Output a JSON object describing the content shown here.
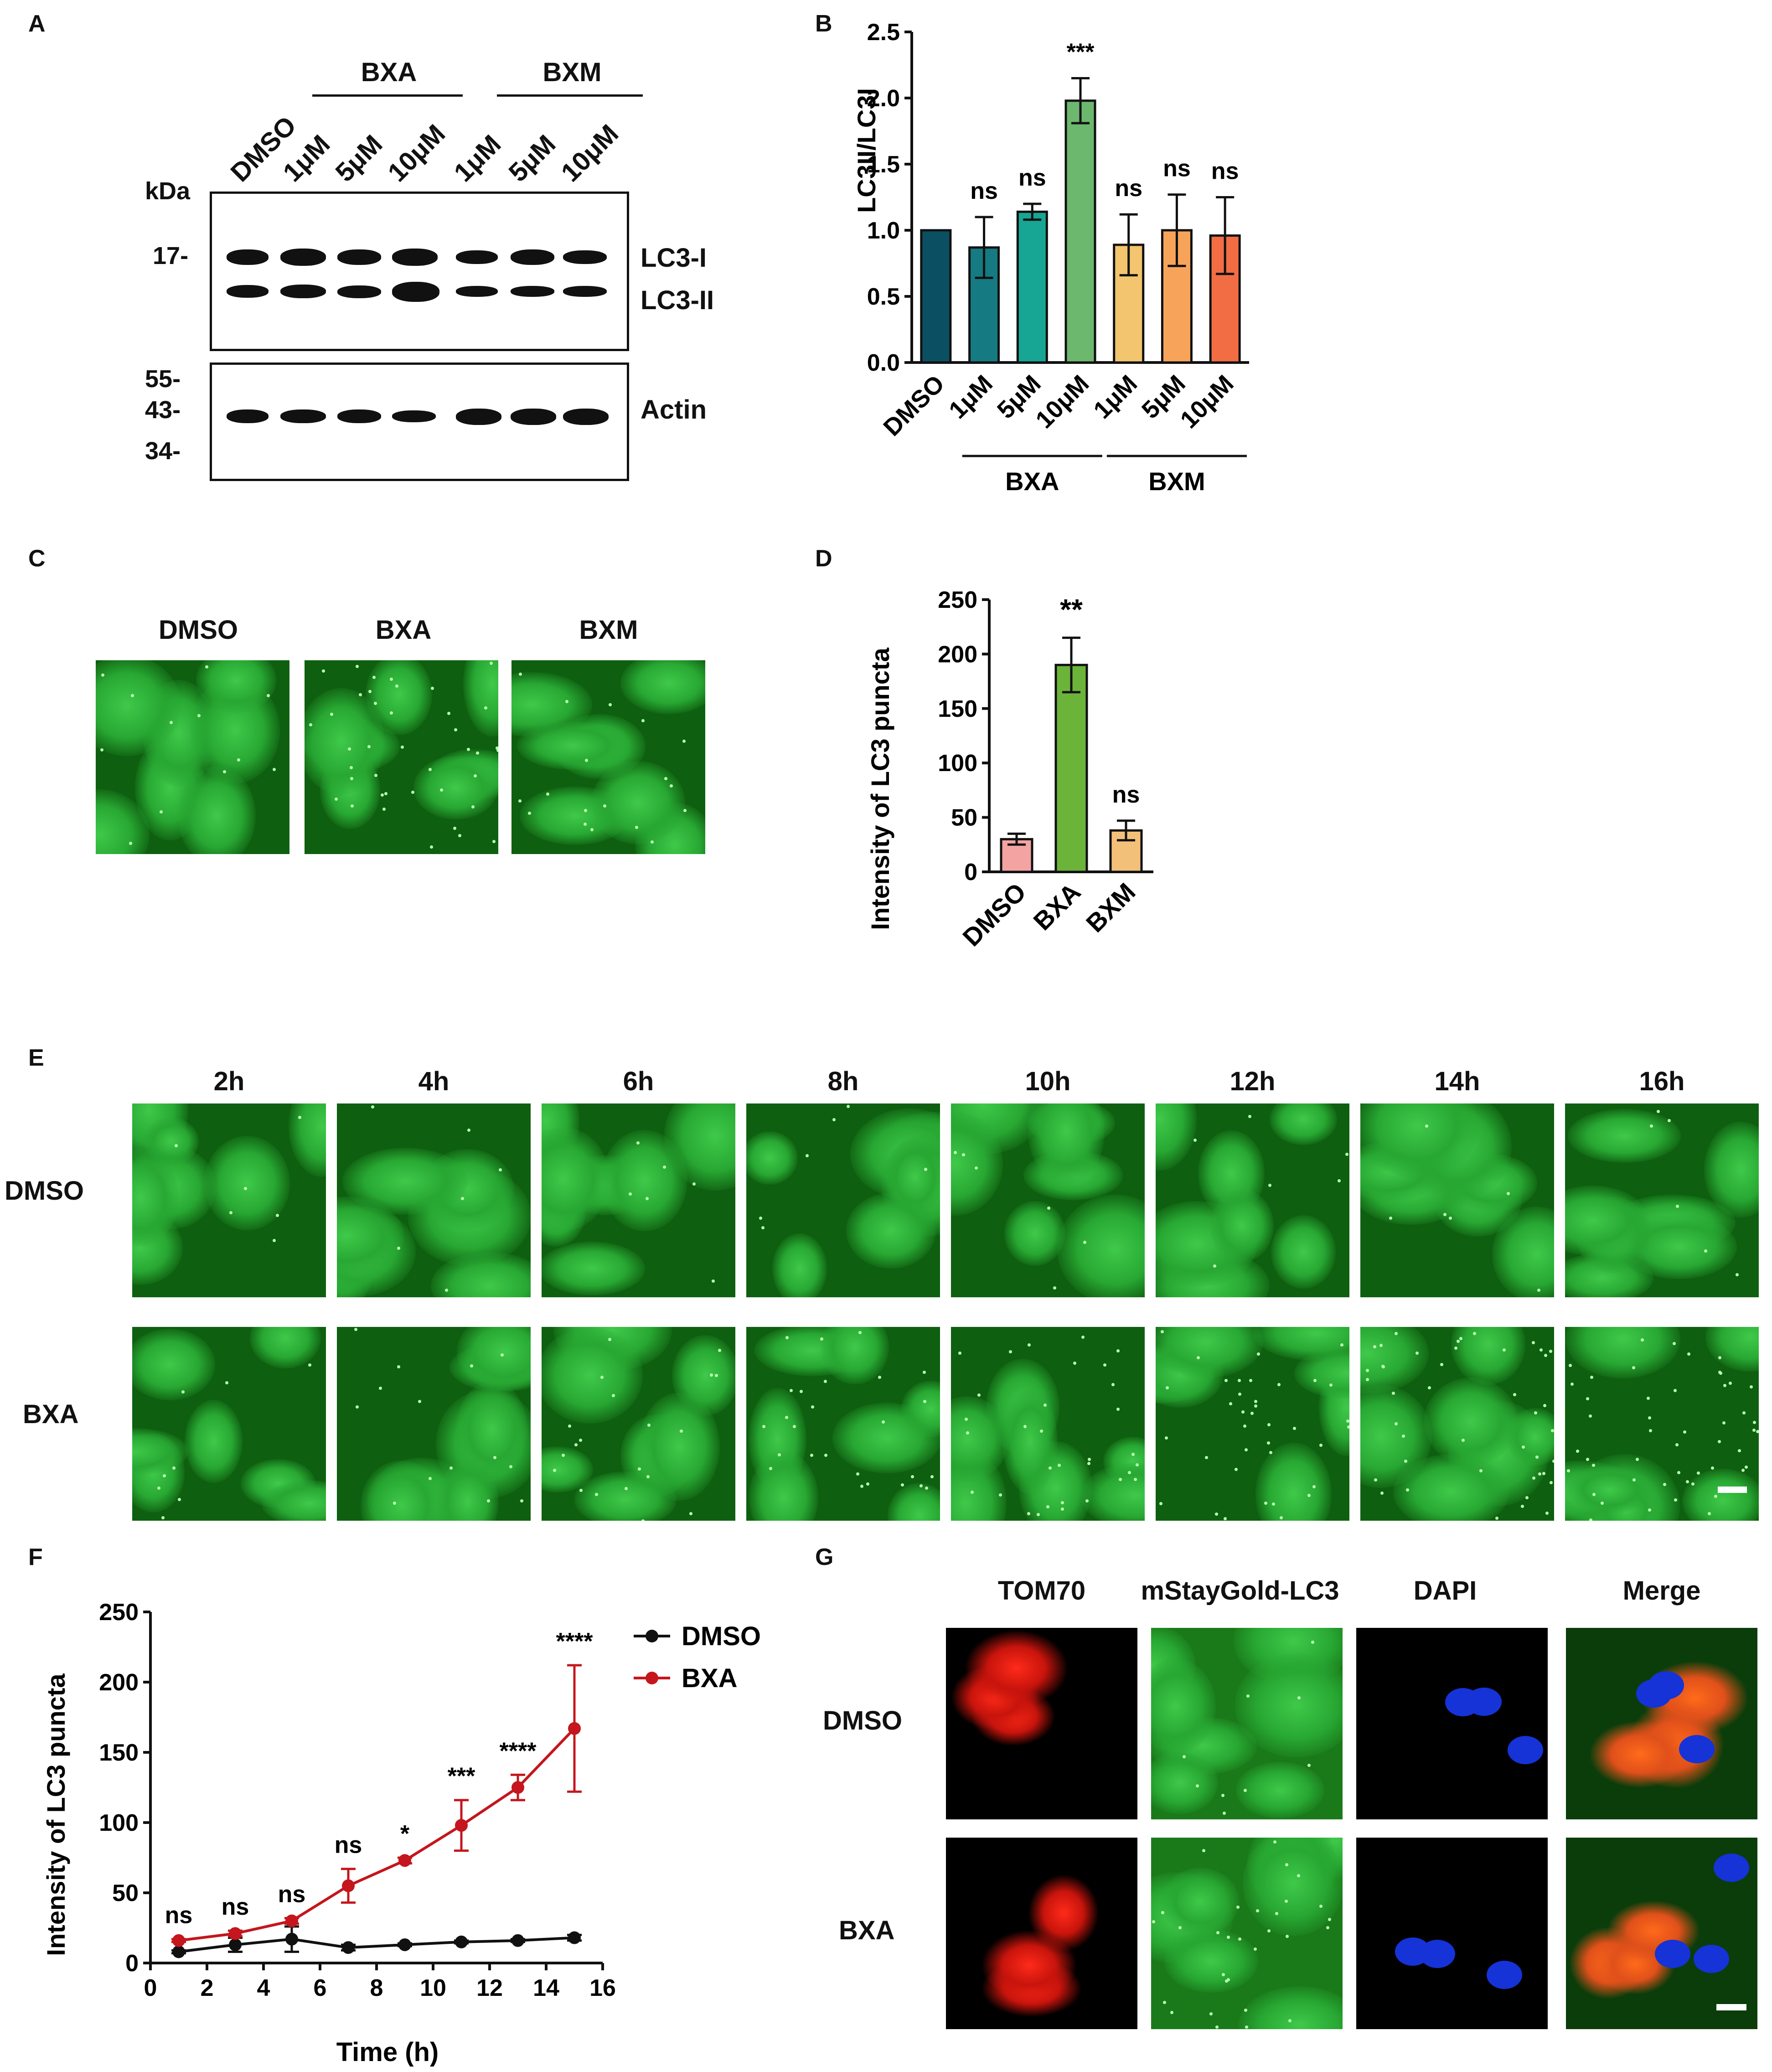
{
  "panels": {
    "A": "A",
    "B": "B",
    "C": "C",
    "D": "D",
    "E": "E",
    "F": "F",
    "G": "G"
  },
  "panelA": {
    "group_labels": [
      "BXA",
      "BXM"
    ],
    "lanes": [
      "DMSO",
      "1μM",
      "5μM",
      "10μM",
      "1μM",
      "5μM",
      "10μM"
    ],
    "kda": "kDa",
    "markers_top": [
      "17-"
    ],
    "markers_bottom": [
      "55-",
      "43-",
      "34-"
    ],
    "band_labels": [
      "LC3-I",
      "LC3-II",
      "Actin"
    ]
  },
  "panelC": {
    "labels": [
      "DMSO",
      "BXA",
      "BXM"
    ]
  },
  "panelE": {
    "timepoints": [
      "2h",
      "4h",
      "6h",
      "8h",
      "10h",
      "12h",
      "14h",
      "16h"
    ],
    "rows": [
      "DMSO",
      "BXA"
    ]
  },
  "panelG": {
    "columns": [
      "TOM70",
      "mStayGold-LC3",
      "DAPI",
      "Merge"
    ],
    "rows": [
      "DMSO",
      "BXA"
    ]
  },
  "chart_data": [
    {
      "panel": "B",
      "type": "bar",
      "categories": [
        "DMSO",
        "1μM",
        "5μM",
        "10μM",
        "1μM",
        "5μM",
        "10μM"
      ],
      "groups": [
        {
          "label": "BXA",
          "categories": [
            1,
            2,
            3
          ]
        },
        {
          "label": "BXM",
          "categories": [
            4,
            5,
            6
          ]
        }
      ],
      "values": [
        1.0,
        0.87,
        1.14,
        1.98,
        0.89,
        1.0,
        0.96
      ],
      "errors": [
        0,
        0.23,
        0.06,
        0.17,
        0.23,
        0.27,
        0.29
      ],
      "significance": [
        "",
        "ns",
        "ns",
        "***",
        "ns",
        "ns",
        "ns"
      ],
      "colors": [
        "#0b4f63",
        "#157a82",
        "#17a693",
        "#6db86f",
        "#f2c56e",
        "#f7a45a",
        "#f26d44"
      ],
      "ylabel": "LC3II/LC3I",
      "ylim": [
        0,
        2.5
      ],
      "yticks": [
        "0.0",
        "0.5",
        "1.0",
        "1.5",
        "2.0",
        "2.5"
      ]
    },
    {
      "panel": "D",
      "type": "bar",
      "categories": [
        "DMSO",
        "BXA",
        "BXM"
      ],
      "values": [
        30,
        190,
        38
      ],
      "errors": [
        5,
        25,
        9
      ],
      "significance": [
        "",
        "**",
        "ns"
      ],
      "colors": [
        "#f4a3a3",
        "#6cb33a",
        "#f3c07a"
      ],
      "ylabel": "Intensity of LC3 puncta",
      "ylim": [
        0,
        250
      ],
      "yticks": [
        "0",
        "50",
        "100",
        "150",
        "200",
        "250"
      ]
    },
    {
      "panel": "F",
      "type": "line",
      "x": [
        1,
        3,
        5,
        7,
        9,
        11,
        13,
        15
      ],
      "series": [
        {
          "name": "DMSO",
          "values": [
            8,
            13,
            17,
            11,
            13,
            15,
            16,
            18
          ],
          "errors": [
            1,
            5,
            9,
            2,
            1,
            1,
            1,
            2
          ],
          "color": "#111111"
        },
        {
          "name": "BXA",
          "values": [
            16,
            21,
            30,
            55,
            73,
            98,
            125,
            167
          ],
          "errors": [
            1,
            2,
            2,
            12,
            2,
            18,
            9,
            45
          ],
          "color": "#c4161c"
        }
      ],
      "significance": [
        "ns",
        "ns",
        "ns",
        "ns",
        "*",
        "***",
        "****",
        "****"
      ],
      "xlabel": "Time (h)",
      "ylabel": "Intensity of LC3 puncta",
      "xlim": [
        0,
        16
      ],
      "ylim": [
        0,
        250
      ],
      "xticks": [
        "0",
        "2",
        "4",
        "6",
        "8",
        "10",
        "12",
        "14",
        "16"
      ],
      "yticks": [
        "0",
        "50",
        "100",
        "150",
        "200",
        "250"
      ]
    }
  ]
}
